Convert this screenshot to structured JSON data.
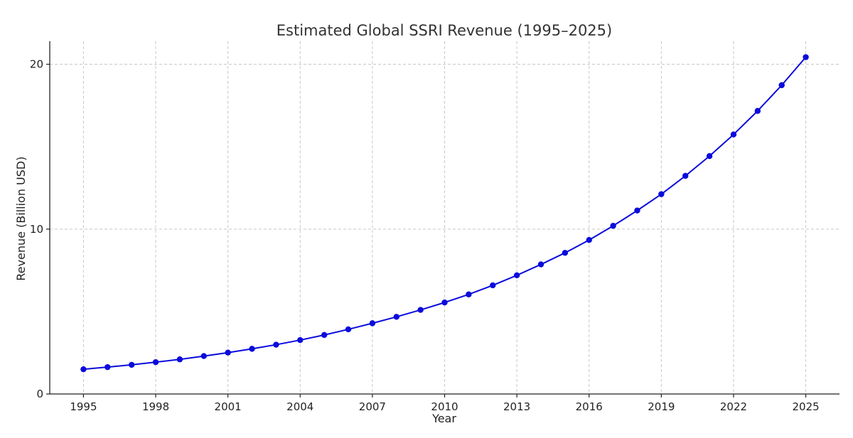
{
  "chart_data": {
    "type": "line",
    "title": "Estimated Global SSRI Revenue (1995–2025)",
    "xlabel": "Year",
    "ylabel": "Revenue (Billion USD)",
    "xlim": [
      1993.6,
      2026.4
    ],
    "ylim": [
      0,
      21.4
    ],
    "x_ticks": [
      1995,
      1998,
      2001,
      2004,
      2007,
      2010,
      2013,
      2016,
      2019,
      2022,
      2025
    ],
    "y_ticks": [
      0,
      10,
      20
    ],
    "grid": true,
    "colors": {
      "line": "#0a0adc",
      "marker": "#0a0adc"
    },
    "series": [
      {
        "name": "Revenue",
        "x": [
          1995,
          1996,
          1997,
          1998,
          1999,
          2000,
          2001,
          2002,
          2003,
          2004,
          2005,
          2006,
          2007,
          2008,
          2009,
          2010,
          2011,
          2012,
          2013,
          2014,
          2015,
          2016,
          2017,
          2018,
          2019,
          2020,
          2021,
          2022,
          2023,
          2024,
          2025
        ],
        "values": [
          1.5,
          1.63,
          1.77,
          1.93,
          2.1,
          2.3,
          2.51,
          2.74,
          2.99,
          3.27,
          3.58,
          3.92,
          4.29,
          4.68,
          5.1,
          5.55,
          6.04,
          6.59,
          7.2,
          7.86,
          8.56,
          9.34,
          10.2,
          11.13,
          12.12,
          13.23,
          14.43,
          15.74,
          17.17,
          18.73,
          20.43
        ]
      }
    ]
  }
}
